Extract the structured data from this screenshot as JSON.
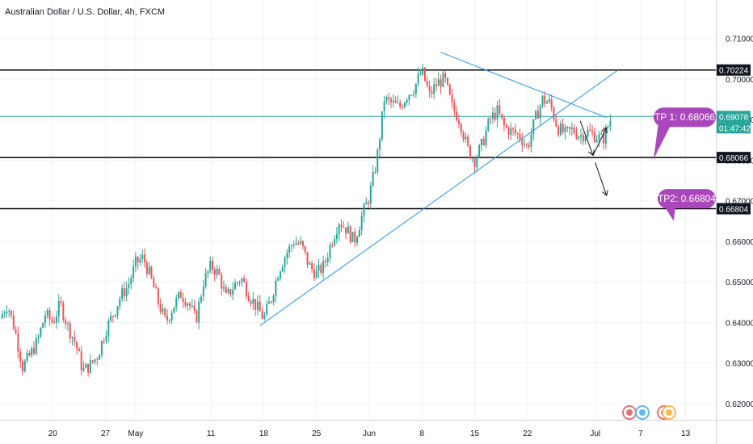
{
  "chart_data": {
    "type": "candlestick",
    "title": "Australian Dollar / U.S. Dollar, 4h, FXCM",
    "ylim": [
      0.616,
      0.7195
    ],
    "y_ticks": [
      "0.71000",
      "0.70000",
      "0.69000",
      "0.68000",
      "0.67000",
      "0.66000",
      "0.65000",
      "0.64000",
      "0.63000",
      "0.62000"
    ],
    "y_tick_values": [
      0.71,
      0.7,
      0.69,
      0.68,
      0.67,
      0.66,
      0.65,
      0.64,
      0.63,
      0.62
    ],
    "x_ticks": [
      "20",
      "27",
      "May",
      "11",
      "18",
      "25",
      "Jun",
      "8",
      "15",
      "22",
      "Jul",
      "7",
      "13"
    ],
    "x_tick_days": [
      -11,
      -4,
      0,
      10,
      17,
      24,
      31,
      38,
      45,
      52,
      61,
      67,
      73
    ],
    "x_range_days": [
      -18,
      77
    ],
    "grid": true,
    "up_color": "#26a69a",
    "down_color": "#ef5350",
    "levels": [
      {
        "label": "0.70224",
        "value": 0.70224,
        "color": "#000000",
        "tag_bg": "#131722"
      },
      {
        "label": "0.68066",
        "value": 0.68066,
        "color": "#000000",
        "tag_bg": "#131722"
      },
      {
        "label": "0.66804",
        "value": 0.66804,
        "color": "#000000",
        "tag_bg": "#131722"
      },
      {
        "label": "0.69078",
        "value": 0.69078,
        "color": "#26a69a",
        "tag_bg": "#26a69a",
        "countdown": "01:47:42"
      }
    ],
    "trendlines": [
      {
        "from": [
          16.5,
          0.6392
        ],
        "to": [
          64.0,
          0.7022
        ],
        "color": "#2196f3"
      },
      {
        "from": [
          40.5,
          0.7066
        ],
        "to": [
          62.5,
          0.6905
        ],
        "color": "#2196f3"
      }
    ],
    "arrows": [
      {
        "from": [
          59.0,
          0.6897
        ],
        "to": [
          60.7,
          0.6812
        ]
      },
      {
        "from": [
          60.7,
          0.6812
        ],
        "to": [
          62.5,
          0.688
        ]
      },
      {
        "from": [
          61.0,
          0.6794
        ],
        "to": [
          62.5,
          0.6713
        ]
      }
    ],
    "labels": [
      {
        "text": "TP 1: 0.68066",
        "bg": "#ab47bc"
      },
      {
        "text": "TP2: 0.66804",
        "bg": "#ab47bc"
      }
    ],
    "close_anchors": [
      [
        -18,
        0.641
      ],
      [
        -17,
        0.6445
      ],
      [
        -16,
        0.638
      ],
      [
        -15,
        0.629
      ],
      [
        -14,
        0.632
      ],
      [
        -13,
        0.6355
      ],
      [
        -12,
        0.642
      ],
      [
        -11,
        0.64
      ],
      [
        -10,
        0.6445
      ],
      [
        -9,
        0.639
      ],
      [
        -8,
        0.635
      ],
      [
        -7,
        0.628
      ],
      [
        -6,
        0.6295
      ],
      [
        -5,
        0.632
      ],
      [
        -4,
        0.638
      ],
      [
        -3,
        0.642
      ],
      [
        -2,
        0.6465
      ],
      [
        -1,
        0.649
      ],
      [
        0,
        0.6545
      ],
      [
        1,
        0.656
      ],
      [
        2,
        0.651
      ],
      [
        3,
        0.645
      ],
      [
        4,
        0.64
      ],
      [
        5,
        0.644
      ],
      [
        6,
        0.647
      ],
      [
        7,
        0.645
      ],
      [
        8,
        0.6405
      ],
      [
        9,
        0.65
      ],
      [
        10,
        0.654
      ],
      [
        11,
        0.652
      ],
      [
        12,
        0.646
      ],
      [
        13,
        0.649
      ],
      [
        14,
        0.651
      ],
      [
        15,
        0.647
      ],
      [
        16,
        0.644
      ],
      [
        17,
        0.641
      ],
      [
        18,
        0.646
      ],
      [
        19,
        0.653
      ],
      [
        20,
        0.657
      ],
      [
        21,
        0.66
      ],
      [
        22,
        0.659
      ],
      [
        23,
        0.654
      ],
      [
        24,
        0.652
      ],
      [
        25,
        0.654
      ],
      [
        26,
        0.66
      ],
      [
        27,
        0.665
      ],
      [
        28,
        0.663
      ],
      [
        29,
        0.66
      ],
      [
        30,
        0.666
      ],
      [
        31,
        0.671
      ],
      [
        32,
        0.68
      ],
      [
        33,
        0.695
      ],
      [
        34,
        0.694
      ],
      [
        35,
        0.693
      ],
      [
        36,
        0.696
      ],
      [
        37,
        0.698
      ],
      [
        38,
        0.702
      ],
      [
        39,
        0.696
      ],
      [
        40,
        0.699
      ],
      [
        41,
        0.7
      ],
      [
        42,
        0.693
      ],
      [
        43,
        0.69
      ],
      [
        44,
        0.683
      ],
      [
        45,
        0.68
      ],
      [
        46,
        0.684
      ],
      [
        47,
        0.69
      ],
      [
        48,
        0.692
      ],
      [
        49,
        0.688
      ],
      [
        50,
        0.687
      ],
      [
        51,
        0.686
      ],
      [
        52,
        0.683
      ],
      [
        53,
        0.69
      ],
      [
        54,
        0.695
      ],
      [
        55,
        0.694
      ],
      [
        56,
        0.688
      ],
      [
        57,
        0.6865
      ],
      [
        58,
        0.6875
      ],
      [
        59,
        0.686
      ],
      [
        60,
        0.687
      ],
      [
        61,
        0.686
      ],
      [
        62,
        0.685
      ],
      [
        63,
        0.69
      ]
    ]
  }
}
